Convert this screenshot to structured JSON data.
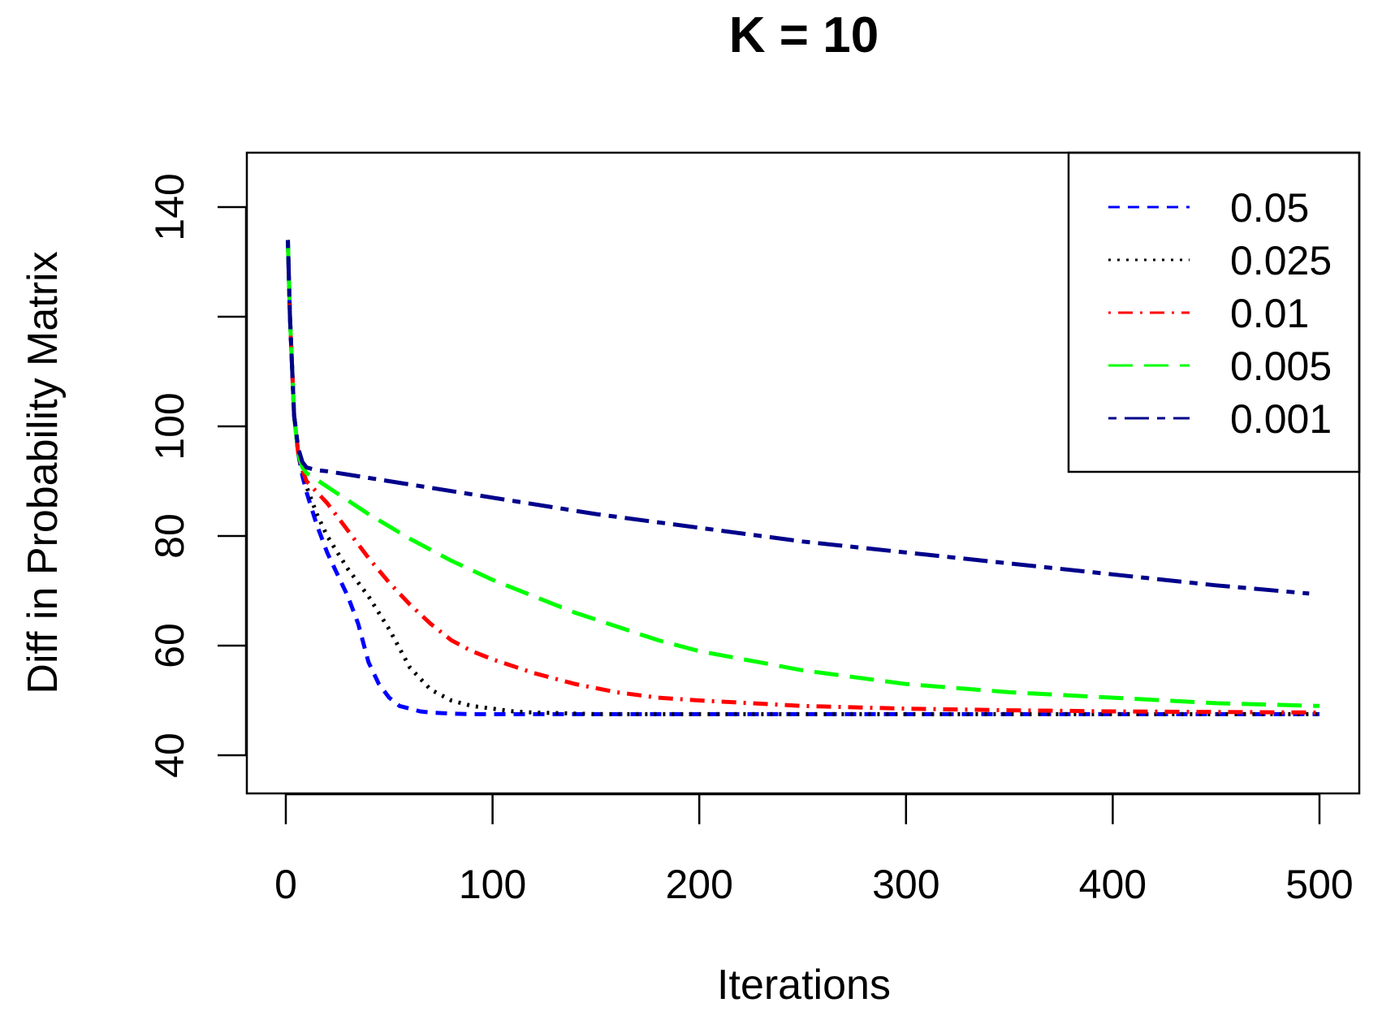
{
  "chart_data": {
    "type": "line",
    "title": "K = 10",
    "xlabel": "Iterations",
    "ylabel": "Diff in Probability Matrix",
    "xlim": [
      0,
      500
    ],
    "ylim": [
      40,
      150
    ],
    "xticks": [
      0,
      100,
      200,
      300,
      400,
      500
    ],
    "yticks": [
      40,
      60,
      80,
      100,
      120,
      140
    ],
    "ytick_labels": [
      "40",
      "60",
      "80",
      "100",
      "",
      "140"
    ],
    "grid": false,
    "legend_position": "top-right",
    "series": [
      {
        "name": "0.05",
        "color": "#0000ff",
        "dash": "dashed",
        "x": [
          1,
          2,
          4,
          6,
          8,
          10,
          15,
          20,
          25,
          30,
          35,
          40,
          45,
          50,
          55,
          60,
          65,
          70,
          80,
          90,
          100,
          150,
          200,
          300,
          400,
          500
        ],
        "y": [
          134,
          120,
          102,
          95,
          91,
          88,
          82,
          77,
          73,
          69,
          64,
          57,
          53,
          50.5,
          49,
          48.5,
          48,
          47.8,
          47.6,
          47.5,
          47.5,
          47.5,
          47.5,
          47.5,
          47.5,
          47.5
        ]
      },
      {
        "name": "0.025",
        "color": "#000000",
        "dash": "dotted",
        "x": [
          1,
          2,
          4,
          6,
          8,
          10,
          15,
          20,
          25,
          30,
          40,
          50,
          60,
          70,
          80,
          90,
          100,
          110,
          120,
          130,
          140,
          150,
          200,
          300,
          400,
          500
        ],
        "y": [
          134,
          120,
          102,
          95,
          92,
          89,
          84,
          80,
          77,
          74,
          69,
          63,
          56,
          52,
          50,
          49,
          48.5,
          48,
          47.8,
          47.7,
          47.6,
          47.5,
          47.5,
          47.5,
          47.5,
          47.5
        ]
      },
      {
        "name": "0.01",
        "color": "#ff0000",
        "dash": "dotdash",
        "x": [
          1,
          2,
          4,
          6,
          8,
          10,
          20,
          30,
          40,
          50,
          60,
          70,
          80,
          90,
          100,
          120,
          140,
          160,
          180,
          200,
          250,
          300,
          350,
          400,
          450,
          500
        ],
        "y": [
          134,
          120,
          102,
          95,
          92,
          90,
          86,
          81,
          76,
          71.5,
          67.5,
          64,
          61,
          59,
          57.5,
          55,
          53,
          51.5,
          50.5,
          50,
          49,
          48.5,
          48.2,
          48,
          47.9,
          47.8
        ]
      },
      {
        "name": "0.005",
        "color": "#00ff00",
        "dash": "longdash",
        "x": [
          1,
          2,
          4,
          6,
          8,
          10,
          20,
          40,
          60,
          80,
          100,
          120,
          140,
          160,
          180,
          200,
          250,
          300,
          350,
          400,
          450,
          500
        ],
        "y": [
          134,
          120,
          102,
          95,
          92.5,
          91.5,
          89,
          84,
          79.5,
          75.5,
          72,
          69,
          66,
          63.5,
          61,
          59,
          55.5,
          53,
          51.5,
          50.5,
          49.5,
          49
        ]
      },
      {
        "name": "0.001",
        "color": "#00008b",
        "dash": "twodash",
        "x": [
          1,
          2,
          4,
          6,
          8,
          10,
          15,
          20,
          50,
          100,
          150,
          200,
          250,
          300,
          350,
          400,
          450,
          495
        ],
        "y": [
          134,
          120,
          102,
          96,
          93.5,
          92.5,
          92,
          91.8,
          90,
          87,
          84,
          81.5,
          79,
          77,
          75,
          73,
          71,
          69.5
        ]
      }
    ]
  }
}
